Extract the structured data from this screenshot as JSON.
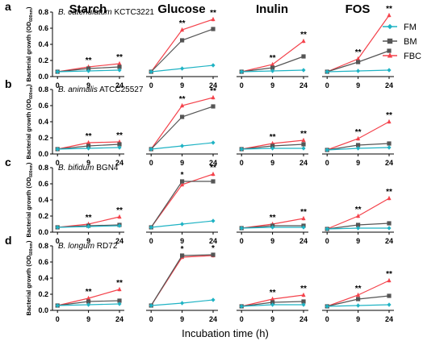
{
  "column_titles": [
    "Starch",
    "Glucose",
    "Inulin",
    "FOS"
  ],
  "xlabel": "Incubation time (h)",
  "ylabel_main": "Bacterial growth (OD",
  "ylabel_sub": "600nm",
  "ylabel_end": ")",
  "legend": [
    {
      "name": "FM",
      "color": "#1fb3c4",
      "marker": "diamond"
    },
    {
      "name": "BM",
      "color": "#555555",
      "marker": "square"
    },
    {
      "name": "FBC",
      "color": "#f4424b",
      "marker": "triangle"
    }
  ],
  "chart_data": {
    "type": "line",
    "x": [
      "0",
      "9",
      "24"
    ],
    "ylim": [
      0,
      0.8
    ],
    "yticks": [
      "0.0",
      "0.2",
      "0.4",
      "0.6",
      "0.8"
    ],
    "rows": [
      {
        "letter": "a",
        "species": "B. catenulatum",
        "strain": "KCTC3221",
        "panels": [
          {
            "substrate": "Starch",
            "FM": [
              0.06,
              0.07,
              0.08
            ],
            "BM": [
              0.06,
              0.1,
              0.12
            ],
            "FBC": [
              0.06,
              0.12,
              0.16
            ],
            "sig": [
              "",
              "**",
              "**"
            ]
          },
          {
            "substrate": "Glucose",
            "FM": [
              0.06,
              0.1,
              0.14
            ],
            "BM": [
              0.06,
              0.45,
              0.59
            ],
            "FBC": [
              0.06,
              0.58,
              0.71
            ],
            "sig": [
              "",
              "**",
              "**"
            ]
          },
          {
            "substrate": "Inulin",
            "FM": [
              0.06,
              0.07,
              0.08
            ],
            "BM": [
              0.06,
              0.11,
              0.25
            ],
            "FBC": [
              0.06,
              0.15,
              0.44
            ],
            "sig": [
              "",
              "**",
              "**"
            ]
          },
          {
            "substrate": "FOS",
            "FM": [
              0.06,
              0.07,
              0.08
            ],
            "BM": [
              0.06,
              0.18,
              0.32
            ],
            "FBC": [
              0.06,
              0.22,
              0.76
            ],
            "sig": [
              "",
              "**",
              "**"
            ]
          }
        ]
      },
      {
        "letter": "b",
        "species": "B. animalis",
        "strain": "ATCC25527",
        "panels": [
          {
            "substrate": "Starch",
            "FM": [
              0.06,
              0.07,
              0.08
            ],
            "BM": [
              0.06,
              0.1,
              0.12
            ],
            "FBC": [
              0.06,
              0.14,
              0.15
            ],
            "sig": [
              "",
              "**",
              "**"
            ]
          },
          {
            "substrate": "Glucose",
            "FM": [
              0.06,
              0.1,
              0.14
            ],
            "BM": [
              0.06,
              0.46,
              0.59
            ],
            "FBC": [
              0.06,
              0.6,
              0.7
            ],
            "sig": [
              "",
              "**",
              "**"
            ]
          },
          {
            "substrate": "Inulin",
            "FM": [
              0.06,
              0.07,
              0.07
            ],
            "BM": [
              0.06,
              0.1,
              0.12
            ],
            "FBC": [
              0.06,
              0.13,
              0.17
            ],
            "sig": [
              "",
              "**",
              "**"
            ]
          },
          {
            "substrate": "FOS",
            "FM": [
              0.05,
              0.07,
              0.08
            ],
            "BM": [
              0.05,
              0.11,
              0.13
            ],
            "FBC": [
              0.05,
              0.19,
              0.4
            ],
            "sig": [
              "",
              "**",
              "**"
            ]
          }
        ]
      },
      {
        "letter": "c",
        "species": "B. bifidum",
        "strain": "BGN4",
        "panels": [
          {
            "substrate": "Starch",
            "FM": [
              0.06,
              0.07,
              0.08
            ],
            "BM": [
              0.06,
              0.08,
              0.09
            ],
            "FBC": [
              0.06,
              0.1,
              0.19
            ],
            "sig": [
              "",
              "**",
              "**"
            ]
          },
          {
            "substrate": "Glucose",
            "FM": [
              0.06,
              0.1,
              0.14
            ],
            "BM": [
              0.06,
              0.63,
              0.63
            ],
            "FBC": [
              0.06,
              0.59,
              0.72
            ],
            "sig": [
              "",
              "*",
              "**"
            ]
          },
          {
            "substrate": "Inulin",
            "FM": [
              0.05,
              0.06,
              0.06
            ],
            "BM": [
              0.05,
              0.08,
              0.08
            ],
            "FBC": [
              0.05,
              0.1,
              0.17
            ],
            "sig": [
              "",
              "**",
              "**"
            ]
          },
          {
            "substrate": "FOS",
            "FM": [
              0.04,
              0.05,
              0.05
            ],
            "BM": [
              0.04,
              0.09,
              0.11
            ],
            "FBC": [
              0.04,
              0.2,
              0.42
            ],
            "sig": [
              "",
              "**",
              "**"
            ]
          }
        ]
      },
      {
        "letter": "d",
        "species": "B. longum",
        "strain": "RD72",
        "panels": [
          {
            "substrate": "Starch",
            "FM": [
              0.06,
              0.07,
              0.08
            ],
            "BM": [
              0.06,
              0.11,
              0.12
            ],
            "FBC": [
              0.06,
              0.15,
              0.26
            ],
            "sig": [
              "",
              "**",
              "**"
            ]
          },
          {
            "substrate": "Glucose",
            "FM": [
              0.06,
              0.09,
              0.13
            ],
            "BM": [
              0.06,
              0.68,
              0.69
            ],
            "FBC": [
              0.06,
              0.66,
              0.68
            ],
            "sig": [
              "",
              "*",
              "*"
            ]
          },
          {
            "substrate": "Inulin",
            "FM": [
              0.05,
              0.07,
              0.07
            ],
            "BM": [
              0.05,
              0.1,
              0.11
            ],
            "FBC": [
              0.05,
              0.14,
              0.19
            ],
            "sig": [
              "",
              "**",
              "**"
            ]
          },
          {
            "substrate": "FOS",
            "FM": [
              0.05,
              0.06,
              0.07
            ],
            "BM": [
              0.05,
              0.14,
              0.18
            ],
            "FBC": [
              0.05,
              0.19,
              0.37
            ],
            "sig": [
              "",
              "**",
              "**"
            ]
          }
        ]
      }
    ]
  }
}
